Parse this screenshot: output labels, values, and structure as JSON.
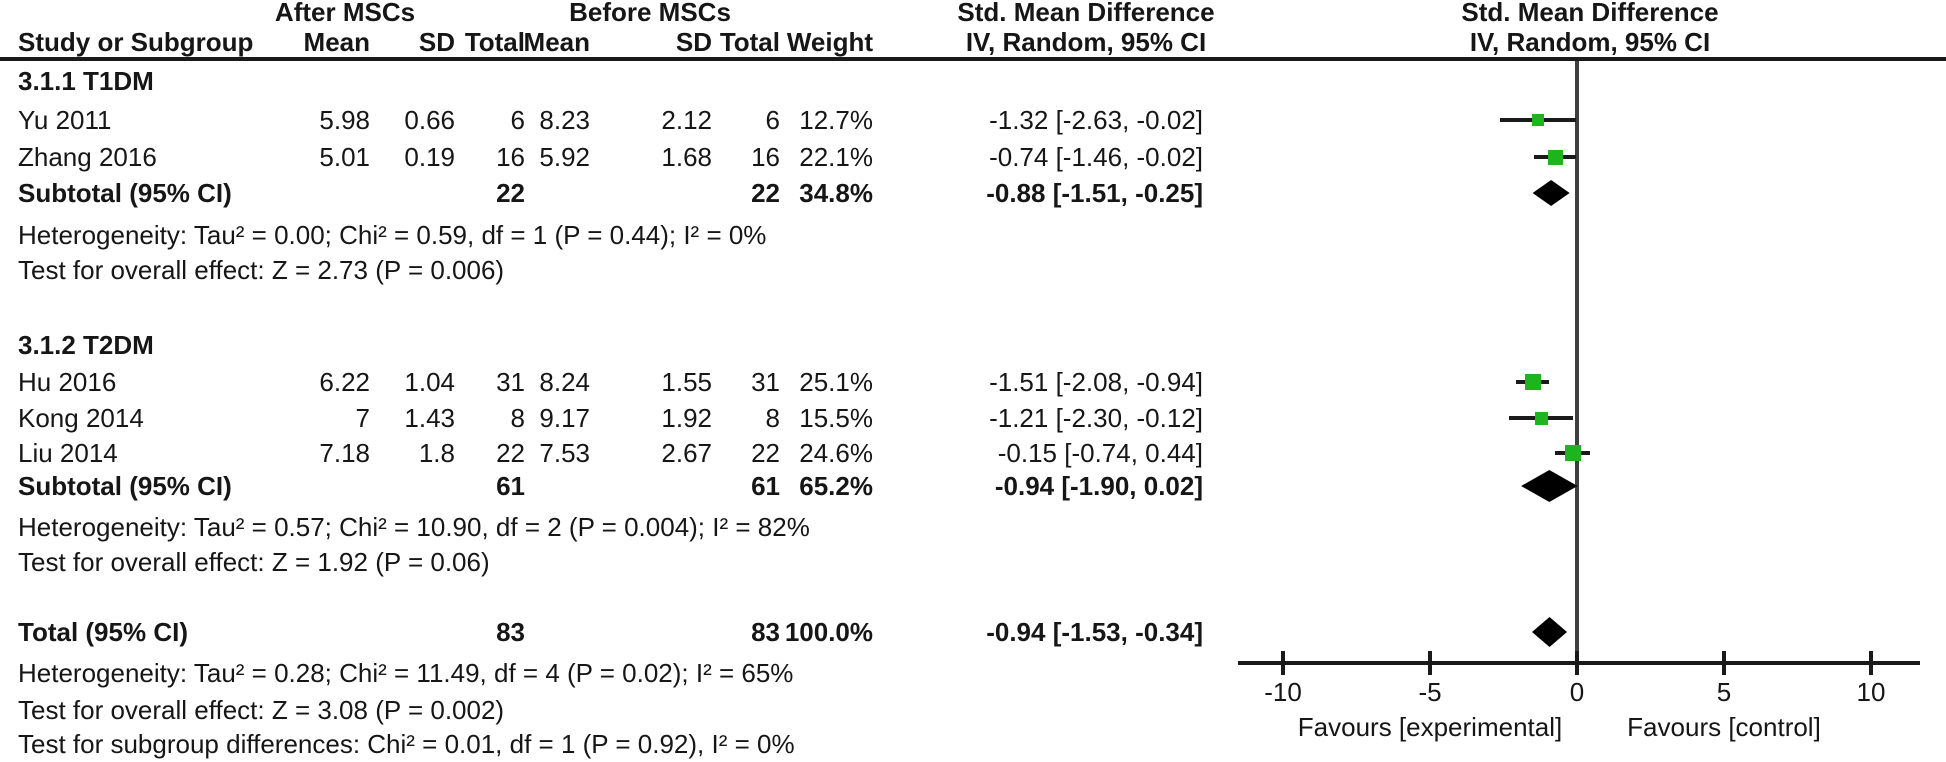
{
  "colors": {
    "marker_green": "#1eb41e",
    "line_black": "#1a1a1a",
    "zero_line_gray": "#3f3f3f",
    "text": "#161616",
    "diamond_black": "#000000"
  },
  "chart_data": {
    "type": "forest",
    "effect_measure": "Std. Mean Difference",
    "method": "IV, Random, 95% CI",
    "header": {
      "study": "Study or Subgroup",
      "after": "After MSCs",
      "before": "Before MSCs",
      "mean": "Mean",
      "sd": "SD",
      "total": "Total",
      "weight": "Weight",
      "smd": "Std. Mean Difference",
      "iv_random": "IV, Random, 95% CI"
    },
    "sections": [
      {
        "label": "3.1.1 T1DM",
        "studies": [
          {
            "study": "Yu  2011",
            "mean1": "5.98",
            "sd1": "0.66",
            "total1": "6",
            "mean2": "8.23",
            "sd2": "2.12",
            "total2": "6",
            "weight": "12.7%",
            "ci_text": "-1.32 [-2.63, -0.02]",
            "est": -1.32,
            "lo": -2.63,
            "hi": -0.02
          },
          {
            "study": "Zhang 2016",
            "mean1": "5.01",
            "sd1": "0.19",
            "total1": "16",
            "mean2": "5.92",
            "sd2": "1.68",
            "total2": "16",
            "weight": "22.1%",
            "ci_text": "-0.74 [-1.46, -0.02]",
            "est": -0.74,
            "lo": -1.46,
            "hi": -0.02
          }
        ],
        "subtotal": {
          "label": "Subtotal (95% CI)",
          "total1": "22",
          "total2": "22",
          "weight": "34.8%",
          "ci_text": "-0.88 [-1.51, -0.25]",
          "est": -0.88,
          "lo": -1.51,
          "hi": -0.25
        },
        "heterogeneity": "Heterogeneity: Tau² = 0.00; Chi² = 0.59, df = 1 (P = 0.44); I² = 0%",
        "overall_test": "Test for overall effect: Z = 2.73 (P = 0.006)"
      },
      {
        "label": "3.1.2 T2DM",
        "studies": [
          {
            "study": "Hu 2016",
            "mean1": "6.22",
            "sd1": "1.04",
            "total1": "31",
            "mean2": "8.24",
            "sd2": "1.55",
            "total2": "31",
            "weight": "25.1%",
            "ci_text": "-1.51 [-2.08, -0.94]",
            "est": -1.51,
            "lo": -2.08,
            "hi": -0.94
          },
          {
            "study": "Kong 2014",
            "mean1": "7",
            "sd1": "1.43",
            "total1": "8",
            "mean2": "9.17",
            "sd2": "1.92",
            "total2": "8",
            "weight": "15.5%",
            "ci_text": "-1.21 [-2.30, -0.12]",
            "est": -1.21,
            "lo": -2.3,
            "hi": -0.12
          },
          {
            "study": "Liu 2014",
            "mean1": "7.18",
            "sd1": "1.8",
            "total1": "22",
            "mean2": "7.53",
            "sd2": "2.67",
            "total2": "22",
            "weight": "24.6%",
            "ci_text": "-0.15 [-0.74, 0.44]",
            "est": -0.15,
            "lo": -0.74,
            "hi": 0.44
          }
        ],
        "subtotal": {
          "label": "Subtotal (95% CI)",
          "total1": "61",
          "total2": "61",
          "weight": "65.2%",
          "ci_text": "-0.94 [-1.90, 0.02]",
          "est": -0.94,
          "lo": -1.9,
          "hi": 0.02
        },
        "heterogeneity": "Heterogeneity: Tau² = 0.57; Chi² = 10.90, df = 2 (P = 0.004); I² = 82%",
        "overall_test": "Test for overall effect: Z = 1.92 (P = 0.06)"
      }
    ],
    "total": {
      "label": "Total (95% CI)",
      "total1": "83",
      "total2": "83",
      "weight": "100.0%",
      "ci_text": "-0.94 [-1.53, -0.34]",
      "est": -0.94,
      "lo": -1.53,
      "hi": -0.34
    },
    "total_heterogeneity": "Heterogeneity: Tau² = 0.28; Chi² = 11.49, df = 4 (P = 0.02); I² = 65%",
    "total_overall_test": "Test for overall effect: Z = 3.08 (P = 0.002)",
    "subgroup_test": "Test for subgroup differences: Chi² = 0.01, df = 1 (P = 0.92), I² = 0%",
    "axis": {
      "ticks": [
        "-10",
        "-5",
        "0",
        "5",
        "10"
      ],
      "tick_values": [
        -10,
        -5,
        0,
        5,
        10
      ],
      "xlim": [
        -11.5,
        11.7
      ],
      "favours_left": "Favours [experimental]",
      "favours_right": "Favours [control]"
    }
  }
}
